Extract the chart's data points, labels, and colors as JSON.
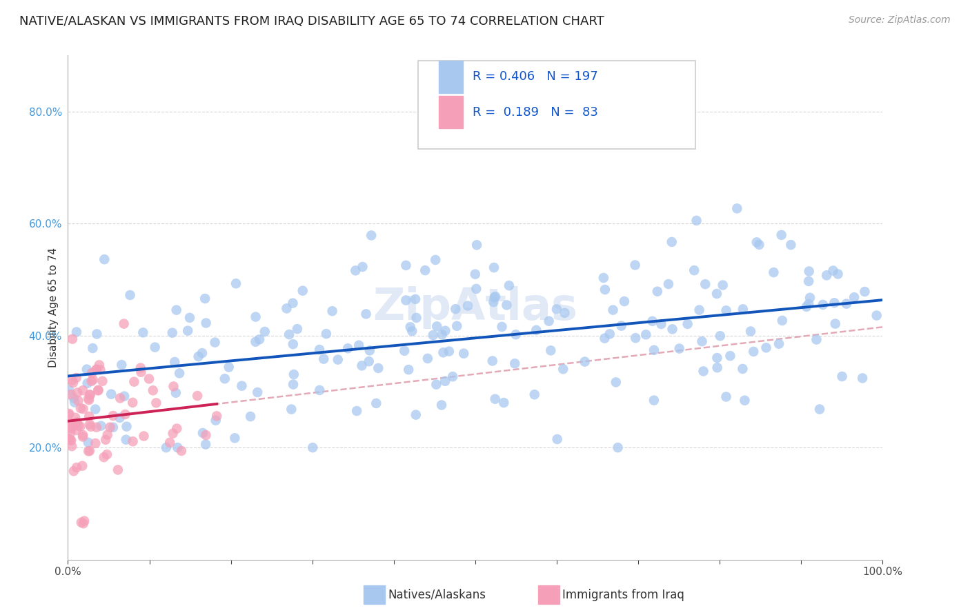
{
  "title": "NATIVE/ALASKAN VS IMMIGRANTS FROM IRAQ DISABILITY AGE 65 TO 74 CORRELATION CHART",
  "source": "Source: ZipAtlas.com",
  "ylabel_label": "Disability Age 65 to 74",
  "legend1_R": "0.406",
  "legend1_N": "197",
  "legend2_R": "0.189",
  "legend2_N": "83",
  "native_color": "#a8c8f0",
  "native_line_color": "#1155bb",
  "immigrant_color": "#f5a0b8",
  "immigrant_line_color": "#cc2255",
  "dashed_color": "#e0a0b0",
  "background_color": "#ffffff",
  "grid_color": "#cccccc",
  "title_fontsize": 13,
  "axis_label_fontsize": 11,
  "xlim": [
    0.0,
    1.0
  ],
  "ylim": [
    0.0,
    0.9
  ]
}
